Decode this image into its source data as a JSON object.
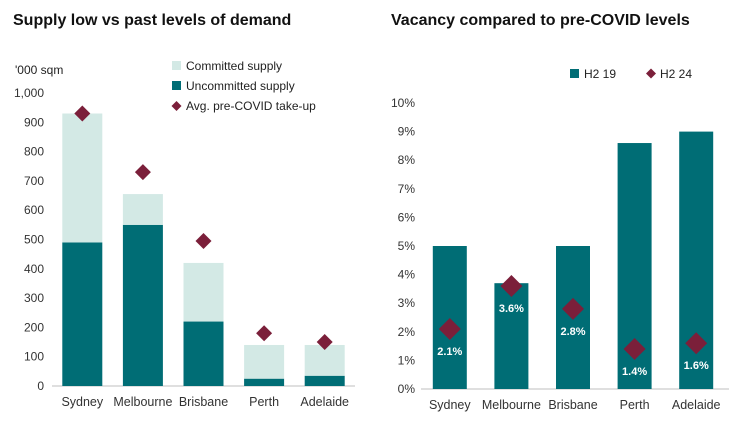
{
  "colors": {
    "teal": "#006d75",
    "light_teal": "#d3e9e5",
    "marker": "#7b1f3a",
    "axis": "#bfbfbf"
  },
  "chart_data": [
    {
      "type": "bar",
      "stacked": true,
      "title": "Supply low vs past levels of demand",
      "ylabel": "'000 sqm",
      "ylim": [
        0,
        1000
      ],
      "yticks": [
        "0",
        "100",
        "200",
        "300",
        "400",
        "500",
        "600",
        "700",
        "800",
        "900",
        "1,000"
      ],
      "categories": [
        "Sydney",
        "Melbourne",
        "Brisbane",
        "Perth",
        "Adelaide"
      ],
      "series": [
        {
          "name": "Uncommitted supply",
          "kind": "bar",
          "values": [
            490,
            550,
            220,
            25,
            35
          ]
        },
        {
          "name": "Committed supply",
          "kind": "bar",
          "values": [
            440,
            105,
            200,
            115,
            105
          ]
        },
        {
          "name": "Avg. pre-COVID take-up",
          "kind": "marker",
          "values": [
            930,
            730,
            495,
            180,
            150
          ]
        }
      ],
      "legend": [
        "Committed supply",
        "Uncommitted supply",
        "Avg. pre-COVID take-up"
      ],
      "legend_position": "top-right",
      "grid": false
    },
    {
      "type": "bar",
      "title": "Vacancy compared to pre-COVID levels",
      "ylim": [
        0,
        10
      ],
      "yticks": [
        "0%",
        "1%",
        "2%",
        "3%",
        "4%",
        "5%",
        "6%",
        "7%",
        "8%",
        "9%",
        "10%"
      ],
      "categories": [
        "Sydney",
        "Melbourne",
        "Brisbane",
        "Perth",
        "Adelaide"
      ],
      "series": [
        {
          "name": "H2 19",
          "kind": "bar",
          "values": [
            5.0,
            3.7,
            5.0,
            8.6,
            9.0
          ]
        },
        {
          "name": "H2 24",
          "kind": "marker",
          "values": [
            2.1,
            3.6,
            2.8,
            1.4,
            1.6
          ],
          "labels": [
            "2.1%",
            "3.6%",
            "2.8%",
            "1.4%",
            "1.6%"
          ]
        }
      ],
      "legend": [
        "H2 19",
        "H2 24"
      ],
      "legend_position": "top",
      "grid": false
    }
  ]
}
